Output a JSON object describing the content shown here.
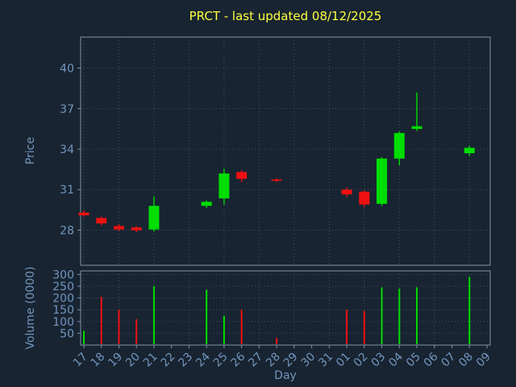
{
  "title": "PRCT - last updated 08/12/2025",
  "colors": {
    "background": "#182431",
    "title": "#ffff40",
    "axis_text": "#7295bd",
    "grid": "#3f5068",
    "spine": "#8093a7",
    "up": "#00dd00",
    "down": "#ee1111"
  },
  "chart_data": {
    "type": "candlestick+volume",
    "title": "PRCT - last updated 08/12/2025",
    "xlabel": "Day",
    "price_ylabel": "Price",
    "volume_ylabel": "Volume (0000)",
    "x_ticklabels": [
      "17",
      "18",
      "19",
      "20",
      "21",
      "22",
      "23",
      "24",
      "25",
      "26",
      "27",
      "28",
      "29",
      "30",
      "31",
      "01",
      "02",
      "03",
      "04",
      "05",
      "06",
      "07",
      "08",
      "09"
    ],
    "price_ticks": [
      28,
      31,
      34,
      37,
      40
    ],
    "price_ylim": [
      25.4,
      42.3
    ],
    "volume_ticks": [
      50,
      100,
      150,
      200,
      250,
      300
    ],
    "volume_ylim": [
      0,
      315
    ],
    "grid": true,
    "candles": [
      {
        "i": 0,
        "day": "17",
        "open": 29.3,
        "high": 29.45,
        "low": 29.0,
        "close": 29.1
      },
      {
        "i": 1,
        "day": "18",
        "open": 28.9,
        "high": 29.0,
        "low": 28.35,
        "close": 28.5
      },
      {
        "i": 2,
        "day": "19",
        "open": 28.3,
        "high": 28.45,
        "low": 27.95,
        "close": 28.05
      },
      {
        "i": 3,
        "day": "20",
        "open": 28.2,
        "high": 28.3,
        "low": 27.85,
        "close": 28.0
      },
      {
        "i": 4,
        "day": "21",
        "open": 28.05,
        "high": 30.5,
        "low": 27.9,
        "close": 29.8
      },
      {
        "i": 7,
        "day": "24",
        "open": 29.8,
        "high": 30.2,
        "low": 29.65,
        "close": 30.1
      },
      {
        "i": 8,
        "day": "25",
        "open": 30.35,
        "high": 32.55,
        "low": 29.9,
        "close": 32.2
      },
      {
        "i": 9,
        "day": "26",
        "open": 32.3,
        "high": 32.45,
        "low": 31.55,
        "close": 31.8
      },
      {
        "i": 11,
        "day": "28",
        "open": 31.75,
        "high": 31.85,
        "low": 31.55,
        "close": 31.7
      },
      {
        "i": 15,
        "day": "01",
        "open": 31.0,
        "high": 31.15,
        "low": 30.45,
        "close": 30.65
      },
      {
        "i": 16,
        "day": "02",
        "open": 30.85,
        "high": 30.95,
        "low": 29.7,
        "close": 29.9
      },
      {
        "i": 17,
        "day": "03",
        "open": 29.95,
        "high": 33.4,
        "low": 29.8,
        "close": 33.3
      },
      {
        "i": 18,
        "day": "04",
        "open": 33.3,
        "high": 35.3,
        "low": 32.8,
        "close": 35.2
      },
      {
        "i": 19,
        "day": "05",
        "open": 35.5,
        "high": 38.2,
        "low": 35.35,
        "close": 35.7
      },
      {
        "i": 22,
        "day": "08",
        "open": 33.7,
        "high": 34.25,
        "low": 33.5,
        "close": 34.1
      }
    ],
    "volumes": [
      {
        "i": 0,
        "day": "17",
        "value": 60,
        "dir": "up"
      },
      {
        "i": 1,
        "day": "18",
        "value": 205,
        "dir": "down"
      },
      {
        "i": 2,
        "day": "19",
        "value": 150,
        "dir": "down"
      },
      {
        "i": 3,
        "day": "20",
        "value": 110,
        "dir": "down"
      },
      {
        "i": 4,
        "day": "21",
        "value": 250,
        "dir": "up"
      },
      {
        "i": 7,
        "day": "24",
        "value": 235,
        "dir": "up"
      },
      {
        "i": 8,
        "day": "25",
        "value": 125,
        "dir": "up"
      },
      {
        "i": 9,
        "day": "26",
        "value": 150,
        "dir": "down"
      },
      {
        "i": 11,
        "day": "28",
        "value": 30,
        "dir": "down"
      },
      {
        "i": 15,
        "day": "01",
        "value": 150,
        "dir": "down"
      },
      {
        "i": 16,
        "day": "02",
        "value": 145,
        "dir": "down"
      },
      {
        "i": 17,
        "day": "03",
        "value": 245,
        "dir": "up"
      },
      {
        "i": 18,
        "day": "04",
        "value": 240,
        "dir": "up"
      },
      {
        "i": 19,
        "day": "05",
        "value": 245,
        "dir": "up"
      },
      {
        "i": 22,
        "day": "08",
        "value": 290,
        "dir": "up"
      }
    ]
  }
}
